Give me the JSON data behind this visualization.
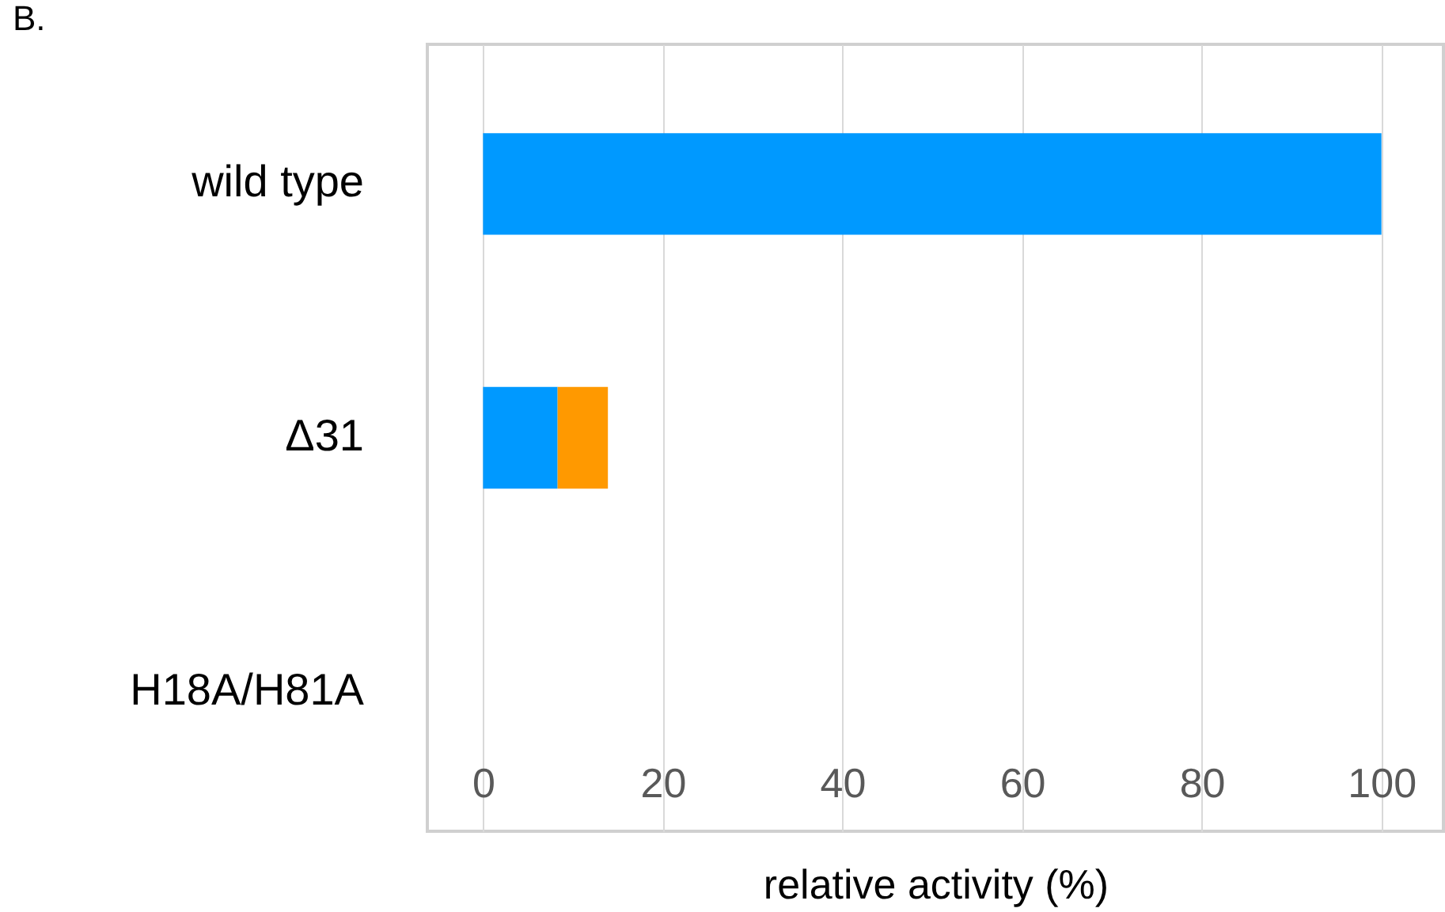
{
  "chart_data": {
    "type": "bar",
    "orientation": "horizontal",
    "stacked": true,
    "title": "B.",
    "xlabel": "relative activity (%)",
    "categories": [
      "wild type",
      "Δ31",
      "H18A/H81A"
    ],
    "series": [
      {
        "color": "#0099ff",
        "values": [
          100,
          8.3,
          0
        ]
      },
      {
        "color": "#ff9900",
        "values": [
          0,
          5.6,
          0
        ]
      }
    ],
    "xlim": [
      -6.2,
      106.9
    ],
    "xticks": [
      0,
      20,
      40,
      60,
      80,
      100
    ],
    "grid": "x"
  }
}
